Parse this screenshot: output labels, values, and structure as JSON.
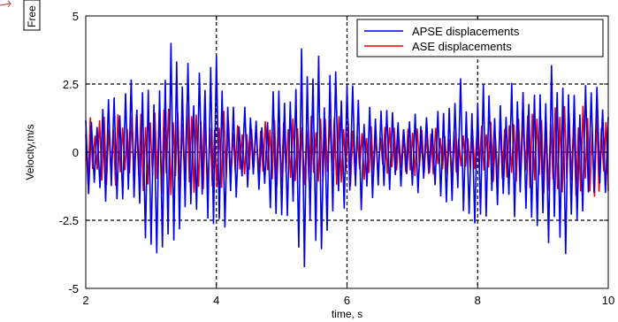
{
  "side_tag": "Free",
  "chart_data": {
    "type": "line",
    "xlabel": "time, s",
    "ylabel": "Velocity,m/s",
    "xlim": [
      2,
      10
    ],
    "ylim": [
      -5,
      5
    ],
    "x_ticks": [
      2,
      4,
      6,
      8,
      10
    ],
    "y_ticks": [
      -5,
      -2.5,
      0,
      2.5,
      5
    ],
    "x_tick_labels": [
      "2",
      "4",
      "6",
      "8",
      "10"
    ],
    "y_tick_labels": [
      "-5",
      "-2.5",
      "0",
      "2.5",
      "5"
    ],
    "grid": true,
    "legend": "top-right",
    "colors": {
      "APSE displacements": "#0000ee",
      "ASE displacements": "#ee0000"
    },
    "series": [
      {
        "name": "ASE displacements",
        "color": "#ee0000",
        "amplitude_envelope": [
          [
            2.0,
            1.3
          ],
          [
            2.5,
            1.4
          ],
          [
            3.0,
            1.5
          ],
          [
            3.5,
            1.8
          ],
          [
            4.0,
            1.7
          ],
          [
            4.5,
            1.1
          ],
          [
            5.0,
            1.3
          ],
          [
            5.5,
            1.6
          ],
          [
            6.0,
            1.3
          ],
          [
            6.5,
            1.0
          ],
          [
            7.0,
            0.9
          ],
          [
            7.5,
            1.0
          ],
          [
            8.0,
            1.0
          ],
          [
            8.5,
            1.3
          ],
          [
            9.0,
            1.6
          ],
          [
            9.5,
            1.9
          ],
          [
            10.0,
            1.5
          ]
        ],
        "frequency_hz": 14.2
      },
      {
        "name": "APSE displacements",
        "color": "#0000ee",
        "amplitude_envelope": [
          [
            2.0,
            1.6
          ],
          [
            2.3,
            2.2
          ],
          [
            2.6,
            2.6
          ],
          [
            3.0,
            3.7
          ],
          [
            3.3,
            4.1
          ],
          [
            3.5,
            4.3
          ],
          [
            3.8,
            3.3
          ],
          [
            4.0,
            3.9
          ],
          [
            4.3,
            2.0
          ],
          [
            4.6,
            1.6
          ],
          [
            5.0,
            3.0
          ],
          [
            5.3,
            4.4
          ],
          [
            5.5,
            3.8
          ],
          [
            5.8,
            3.2
          ],
          [
            6.0,
            2.8
          ],
          [
            6.3,
            2.0
          ],
          [
            6.6,
            1.6
          ],
          [
            7.0,
            1.5
          ],
          [
            7.3,
            1.6
          ],
          [
            7.6,
            2.6
          ],
          [
            7.9,
            3.0
          ],
          [
            8.2,
            2.4
          ],
          [
            8.6,
            2.6
          ],
          [
            9.0,
            3.8
          ],
          [
            9.3,
            4.0
          ],
          [
            9.6,
            2.9
          ],
          [
            10.0,
            2.2
          ]
        ],
        "frequency_hz": 11.5
      }
    ]
  }
}
